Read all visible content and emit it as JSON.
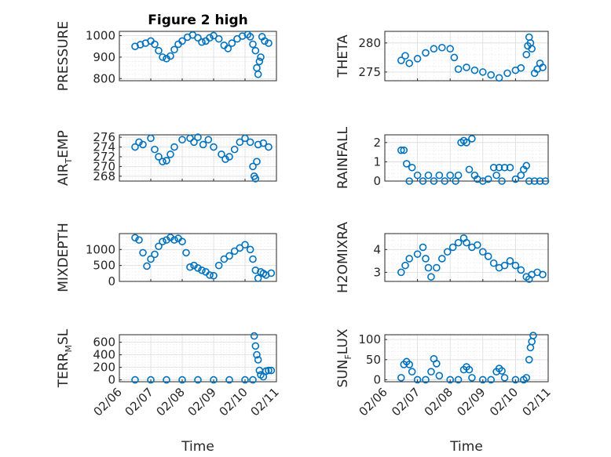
{
  "chart_data": [
    {
      "type": "scatter",
      "title": "Figure 2 high",
      "ylabel": "PRESSURE",
      "xlim": [
        "02/06",
        "02/11"
      ],
      "ylim": [
        790,
        1020
      ],
      "yticks": [
        "800",
        "900",
        "1000"
      ],
      "grid": "on",
      "points": [
        [
          "02/06 12:00",
          950
        ],
        [
          "02/06 16:00",
          958
        ],
        [
          "02/06 20:00",
          965
        ],
        [
          "02/07 00:00",
          975
        ],
        [
          "02/07 03:00",
          960
        ],
        [
          "02/07 06:00",
          930
        ],
        [
          "02/07 09:00",
          900
        ],
        [
          "02/07 12:00",
          893
        ],
        [
          "02/07 15:00",
          905
        ],
        [
          "02/07 18:00",
          935
        ],
        [
          "02/07 21:00",
          960
        ],
        [
          "02/08 00:00",
          975
        ],
        [
          "02/08 04:00",
          993
        ],
        [
          "02/08 08:00",
          1003
        ],
        [
          "02/08 12:00",
          990
        ],
        [
          "02/08 15:00",
          970
        ],
        [
          "02/08 18:00",
          975
        ],
        [
          "02/08 21:00",
          990
        ],
        [
          "02/09 00:00",
          1000
        ],
        [
          "02/09 04:00",
          985
        ],
        [
          "02/09 08:00",
          955
        ],
        [
          "02/09 11:00",
          940
        ],
        [
          "02/09 14:00",
          965
        ],
        [
          "02/09 18:00",
          985
        ],
        [
          "02/09 22:00",
          998
        ],
        [
          "02/10 02:00",
          1005
        ],
        [
          "02/10 04:00",
          995
        ],
        [
          "02/10 06:00",
          960
        ],
        [
          "02/10 08:00",
          930
        ],
        [
          "02/10 09:00",
          850
        ],
        [
          "02/10 10:00",
          820
        ],
        [
          "02/10 11:00",
          880
        ],
        [
          "02/10 12:00",
          900
        ],
        [
          "02/10 13:00",
          995
        ],
        [
          "02/10 15:00",
          975
        ],
        [
          "02/10 18:00",
          965
        ]
      ]
    },
    {
      "type": "scatter",
      "ylabel": "THETA",
      "xlim": [
        "02/06",
        "02/11"
      ],
      "ylim": [
        273.5,
        282
      ],
      "yticks": [
        "275",
        "280"
      ],
      "grid": "on",
      "points": [
        [
          "02/06 12:00",
          277
        ],
        [
          "02/06 15:00",
          277.8
        ],
        [
          "02/06 18:00",
          276.5
        ],
        [
          "02/07 00:00",
          277.3
        ],
        [
          "02/07 06:00",
          278.3
        ],
        [
          "02/07 12:00",
          279
        ],
        [
          "02/07 18:00",
          279.2
        ],
        [
          "02/08 00:00",
          279
        ],
        [
          "02/08 03:00",
          277.5
        ],
        [
          "02/08 06:00",
          275.5
        ],
        [
          "02/08 12:00",
          275.8
        ],
        [
          "02/08 18:00",
          275.3
        ],
        [
          "02/09 00:00",
          275
        ],
        [
          "02/09 06:00",
          274.5
        ],
        [
          "02/09 12:00",
          274
        ],
        [
          "02/09 18:00",
          274.8
        ],
        [
          "02/10 00:00",
          275.3
        ],
        [
          "02/10 04:00",
          275.7
        ],
        [
          "02/10 08:00",
          278
        ],
        [
          "02/10 09:00",
          279.5
        ],
        [
          "02/10 10:00",
          281
        ],
        [
          "02/10 11:00",
          280
        ],
        [
          "02/10 12:00",
          279
        ],
        [
          "02/10 14:00",
          274.8
        ],
        [
          "02/10 16:00",
          275.5
        ],
        [
          "02/10 18:00",
          276.5
        ],
        [
          "02/10 20:00",
          275.8
        ]
      ]
    },
    {
      "type": "scatter",
      "ylabel": "AIR",
      "ylabel_sub": "T",
      "ylabel_rest": "EMP",
      "xlim": [
        "02/06",
        "02/11"
      ],
      "ylim": [
        267,
        276.5
      ],
      "yticks": [
        "268",
        "270",
        "272",
        "274",
        "276"
      ],
      "grid": "on",
      "points": [
        [
          "02/06 12:00",
          274
        ],
        [
          "02/06 15:00",
          275
        ],
        [
          "02/06 18:00",
          274.5
        ],
        [
          "02/07 00:00",
          275.8
        ],
        [
          "02/07 03:00",
          273.5
        ],
        [
          "02/07 06:00",
          272
        ],
        [
          "02/07 09:00",
          271
        ],
        [
          "02/07 12:00",
          271.2
        ],
        [
          "02/07 15:00",
          272.5
        ],
        [
          "02/07 18:00",
          274
        ],
        [
          "02/08 00:00",
          275.5
        ],
        [
          "02/08 06:00",
          275.8
        ],
        [
          "02/08 09:00",
          275
        ],
        [
          "02/08 12:00",
          276
        ],
        [
          "02/08 16:00",
          274.5
        ],
        [
          "02/08 20:00",
          275.5
        ],
        [
          "02/09 00:00",
          274
        ],
        [
          "02/09 06:00",
          272.5
        ],
        [
          "02/09 09:00",
          271.5
        ],
        [
          "02/09 12:00",
          272
        ],
        [
          "02/09 16:00",
          273.5
        ],
        [
          "02/09 20:00",
          275
        ],
        [
          "02/10 00:00",
          275.8
        ],
        [
          "02/10 04:00",
          275
        ],
        [
          "02/10 06:00",
          270
        ],
        [
          "02/10 07:00",
          268
        ],
        [
          "02/10 08:00",
          267.5
        ],
        [
          "02/10 09:00",
          271
        ],
        [
          "02/10 10:00",
          274.5
        ],
        [
          "02/10 14:00",
          274.8
        ],
        [
          "02/10 18:00",
          274
        ]
      ]
    },
    {
      "type": "scatter",
      "ylabel": "RAINFALL",
      "xlim": [
        "02/06",
        "02/11"
      ],
      "ylim": [
        0,
        2.4
      ],
      "yticks": [
        "0",
        "1",
        "2"
      ],
      "grid": "on",
      "points": [
        [
          "02/06 12:00",
          1.6
        ],
        [
          "02/06 14:00",
          1.6
        ],
        [
          "02/06 16:00",
          0.9
        ],
        [
          "02/06 18:00",
          0
        ],
        [
          "02/06 20:00",
          0.7
        ],
        [
          "02/07 00:00",
          0.3
        ],
        [
          "02/07 04:00",
          0
        ],
        [
          "02/07 08:00",
          0.3
        ],
        [
          "02/07 12:00",
          0
        ],
        [
          "02/07 16:00",
          0.3
        ],
        [
          "02/07 20:00",
          0
        ],
        [
          "02/08 00:00",
          0.3
        ],
        [
          "02/08 04:00",
          0
        ],
        [
          "02/08 06:00",
          0.3
        ],
        [
          "02/08 08:00",
          2
        ],
        [
          "02/08 10:00",
          2.1
        ],
        [
          "02/08 12:00",
          2
        ],
        [
          "02/08 14:00",
          0.6
        ],
        [
          "02/08 16:00",
          2.2
        ],
        [
          "02/08 18:00",
          0.3
        ],
        [
          "02/08 20:00",
          0.1
        ],
        [
          "02/09 00:00",
          0
        ],
        [
          "02/09 04:00",
          0.1
        ],
        [
          "02/09 08:00",
          0.7
        ],
        [
          "02/09 10:00",
          0.3
        ],
        [
          "02/09 12:00",
          0.7
        ],
        [
          "02/09 14:00",
          0
        ],
        [
          "02/09 16:00",
          0.7
        ],
        [
          "02/09 20:00",
          0.7
        ],
        [
          "02/10 00:00",
          0.1
        ],
        [
          "02/10 04:00",
          0.3
        ],
        [
          "02/10 06:00",
          0.6
        ],
        [
          "02/10 08:00",
          0.8
        ],
        [
          "02/10 10:00",
          0
        ],
        [
          "02/10 14:00",
          0
        ],
        [
          "02/10 18:00",
          0
        ],
        [
          "02/10 22:00",
          0
        ]
      ]
    },
    {
      "type": "scatter",
      "ylabel": "MIXDEPTH",
      "xlim": [
        "02/06",
        "02/11"
      ],
      "ylim": [
        0,
        1500
      ],
      "yticks": [
        "0",
        "500",
        "1000"
      ],
      "grid": "on",
      "points": [
        [
          "02/06 12:00",
          1370
        ],
        [
          "02/06 15:00",
          1300
        ],
        [
          "02/06 18:00",
          900
        ],
        [
          "02/06 21:00",
          480
        ],
        [
          "02/07 00:00",
          700
        ],
        [
          "02/07 03:00",
          850
        ],
        [
          "02/07 06:00",
          1100
        ],
        [
          "02/07 09:00",
          1250
        ],
        [
          "02/07 12:00",
          1300
        ],
        [
          "02/07 15:00",
          1380
        ],
        [
          "02/07 18:00",
          1300
        ],
        [
          "02/07 21:00",
          1350
        ],
        [
          "02/08 00:00",
          1250
        ],
        [
          "02/08 03:00",
          900
        ],
        [
          "02/08 06:00",
          450
        ],
        [
          "02/08 09:00",
          500
        ],
        [
          "02/08 12:00",
          420
        ],
        [
          "02/08 15:00",
          350
        ],
        [
          "02/08 18:00",
          300
        ],
        [
          "02/08 21:00",
          200
        ],
        [
          "02/09 00:00",
          180
        ],
        [
          "02/09 04:00",
          500
        ],
        [
          "02/09 08:00",
          700
        ],
        [
          "02/09 12:00",
          800
        ],
        [
          "02/09 16:00",
          950
        ],
        [
          "02/09 20:00",
          1050
        ],
        [
          "02/10 00:00",
          1150
        ],
        [
          "02/10 04:00",
          1000
        ],
        [
          "02/10 06:00",
          700
        ],
        [
          "02/10 08:00",
          350
        ],
        [
          "02/10 10:00",
          100
        ],
        [
          "02/10 12:00",
          300
        ],
        [
          "02/10 14:00",
          250
        ],
        [
          "02/10 16:00",
          200
        ],
        [
          "02/10 20:00",
          260
        ]
      ]
    },
    {
      "type": "scatter",
      "ylabel": "H2OMIXRA",
      "xlim": [
        "02/06",
        "02/11"
      ],
      "ylim": [
        2.6,
        4.7
      ],
      "yticks": [
        "3",
        "4"
      ],
      "grid": "on",
      "points": [
        [
          "02/06 12:00",
          3
        ],
        [
          "02/06 15:00",
          3.3
        ],
        [
          "02/06 18:00",
          3.6
        ],
        [
          "02/07 00:00",
          3.8
        ],
        [
          "02/07 04:00",
          4.1
        ],
        [
          "02/07 06:00",
          3.6
        ],
        [
          "02/07 08:00",
          3.2
        ],
        [
          "02/07 10:00",
          2.8
        ],
        [
          "02/07 14:00",
          3.2
        ],
        [
          "02/07 18:00",
          3.6
        ],
        [
          "02/07 22:00",
          3.9
        ],
        [
          "02/08 02:00",
          4.1
        ],
        [
          "02/08 06:00",
          4.3
        ],
        [
          "02/08 10:00",
          4.5
        ],
        [
          "02/08 12:00",
          4.3
        ],
        [
          "02/08 16:00",
          4.1
        ],
        [
          "02/08 20:00",
          4.2
        ],
        [
          "02/09 00:00",
          3.9
        ],
        [
          "02/09 04:00",
          3.7
        ],
        [
          "02/09 08:00",
          3.4
        ],
        [
          "02/09 12:00",
          3.2
        ],
        [
          "02/09 16:00",
          3.3
        ],
        [
          "02/09 20:00",
          3.5
        ],
        [
          "02/10 00:00",
          3.3
        ],
        [
          "02/10 04:00",
          3.1
        ],
        [
          "02/10 08:00",
          2.8
        ],
        [
          "02/10 10:00",
          2.7
        ],
        [
          "02/10 12:00",
          2.9
        ],
        [
          "02/10 16:00",
          3
        ],
        [
          "02/10 20:00",
          2.9
        ]
      ]
    },
    {
      "type": "scatter",
      "ylabel": "TERR",
      "ylabel_sub": "M",
      "ylabel_rest": "SL",
      "xlim": [
        "02/06",
        "02/11"
      ],
      "ylim": [
        -30,
        720
      ],
      "yticks": [
        "0",
        "200",
        "400",
        "600"
      ],
      "grid": "on",
      "xticks": [
        "02/06",
        "02/07",
        "02/08",
        "02/09",
        "02/10",
        "02/11"
      ],
      "xlabel": "Time",
      "points": [
        [
          "02/06 12:00",
          0
        ],
        [
          "02/07 00:00",
          0
        ],
        [
          "02/07 12:00",
          0
        ],
        [
          "02/08 00:00",
          0
        ],
        [
          "02/08 12:00",
          0
        ],
        [
          "02/09 00:00",
          0
        ],
        [
          "02/09 12:00",
          0
        ],
        [
          "02/10 00:00",
          0
        ],
        [
          "02/10 06:00",
          0
        ],
        [
          "02/10 07:00",
          700
        ],
        [
          "02/10 08:00",
          540
        ],
        [
          "02/10 09:00",
          400
        ],
        [
          "02/10 10:00",
          320
        ],
        [
          "02/10 11:00",
          150
        ],
        [
          "02/10 12:00",
          80
        ],
        [
          "02/10 14:00",
          50
        ],
        [
          "02/10 16:00",
          140
        ],
        [
          "02/10 18:00",
          150
        ],
        [
          "02/10 20:00",
          150
        ]
      ]
    },
    {
      "type": "scatter",
      "ylabel": "SUN",
      "ylabel_sub": "F",
      "ylabel_rest": "LUX",
      "xlim": [
        "02/06",
        "02/11"
      ],
      "ylim": [
        -5,
        112
      ],
      "yticks": [
        "0",
        "50",
        "100"
      ],
      "grid": "on",
      "xticks": [
        "02/06",
        "02/07",
        "02/08",
        "02/09",
        "02/10",
        "02/11"
      ],
      "xlabel": "Time",
      "points": [
        [
          "02/06 12:00",
          5
        ],
        [
          "02/06 14:00",
          38
        ],
        [
          "02/06 16:00",
          45
        ],
        [
          "02/06 18:00",
          38
        ],
        [
          "02/06 20:00",
          20
        ],
        [
          "02/07 00:00",
          0
        ],
        [
          "02/07 06:00",
          0
        ],
        [
          "02/07 10:00",
          20
        ],
        [
          "02/07 12:00",
          52
        ],
        [
          "02/07 14:00",
          40
        ],
        [
          "02/07 16:00",
          10
        ],
        [
          "02/08 00:00",
          0
        ],
        [
          "02/08 06:00",
          0
        ],
        [
          "02/08 10:00",
          25
        ],
        [
          "02/08 12:00",
          32
        ],
        [
          "02/08 14:00",
          25
        ],
        [
          "02/08 16:00",
          5
        ],
        [
          "02/09 00:00",
          0
        ],
        [
          "02/09 06:00",
          0
        ],
        [
          "02/09 10:00",
          20
        ],
        [
          "02/09 12:00",
          28
        ],
        [
          "02/09 14:00",
          22
        ],
        [
          "02/09 16:00",
          5
        ],
        [
          "02/10 00:00",
          0
        ],
        [
          "02/10 06:00",
          0
        ],
        [
          "02/10 08:00",
          5
        ],
        [
          "02/10 10:00",
          50
        ],
        [
          "02/10 11:00",
          80
        ],
        [
          "02/10 12:00",
          95
        ],
        [
          "02/10 13:00",
          110
        ]
      ]
    }
  ]
}
